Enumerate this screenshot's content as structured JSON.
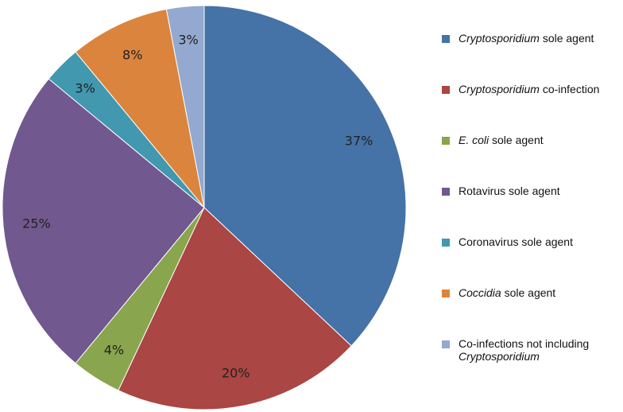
{
  "chart_data": {
    "type": "pie",
    "title": "",
    "start_angle_deg": 0,
    "direction": "clockwise",
    "legend_position": "right",
    "slices": [
      {
        "label": "Cryptosporidium sole agent",
        "label_italic": "Cryptosporidium",
        "label_rest": " sole agent",
        "value": 37,
        "display": "37%",
        "color": "#4572A7"
      },
      {
        "label": "Cryptosporidium co-infection",
        "label_italic": "Cryptosporidium",
        "label_rest": " co-infection",
        "value": 20,
        "display": "20%",
        "color": "#AA4643"
      },
      {
        "label": "E. coli sole agent",
        "label_italic": "E. coli",
        "label_rest": " sole agent",
        "value": 4,
        "display": "4%",
        "color": "#89A54E"
      },
      {
        "label": "Rotavirus sole agent",
        "label_italic": "",
        "label_rest": "Rotavirus sole agent",
        "value": 25,
        "display": "25%",
        "color": "#71588F"
      },
      {
        "label": "Coronavirus sole agent",
        "label_italic": "",
        "label_rest": "Coronavirus sole agent",
        "value": 3,
        "display": "3%",
        "color": "#4198AF"
      },
      {
        "label": "Coccidia sole agent",
        "label_italic": "Coccidia",
        "label_rest": " sole agent",
        "value": 8,
        "display": "8%",
        "color": "#DB843D"
      },
      {
        "label": "Co-infections not including Cryptosporidium",
        "label_prefix": "Co-infections not including",
        "label_italic_line2": "Cryptosporidium",
        "value": 3,
        "display": "3%",
        "color": "#93A9CF"
      }
    ]
  }
}
